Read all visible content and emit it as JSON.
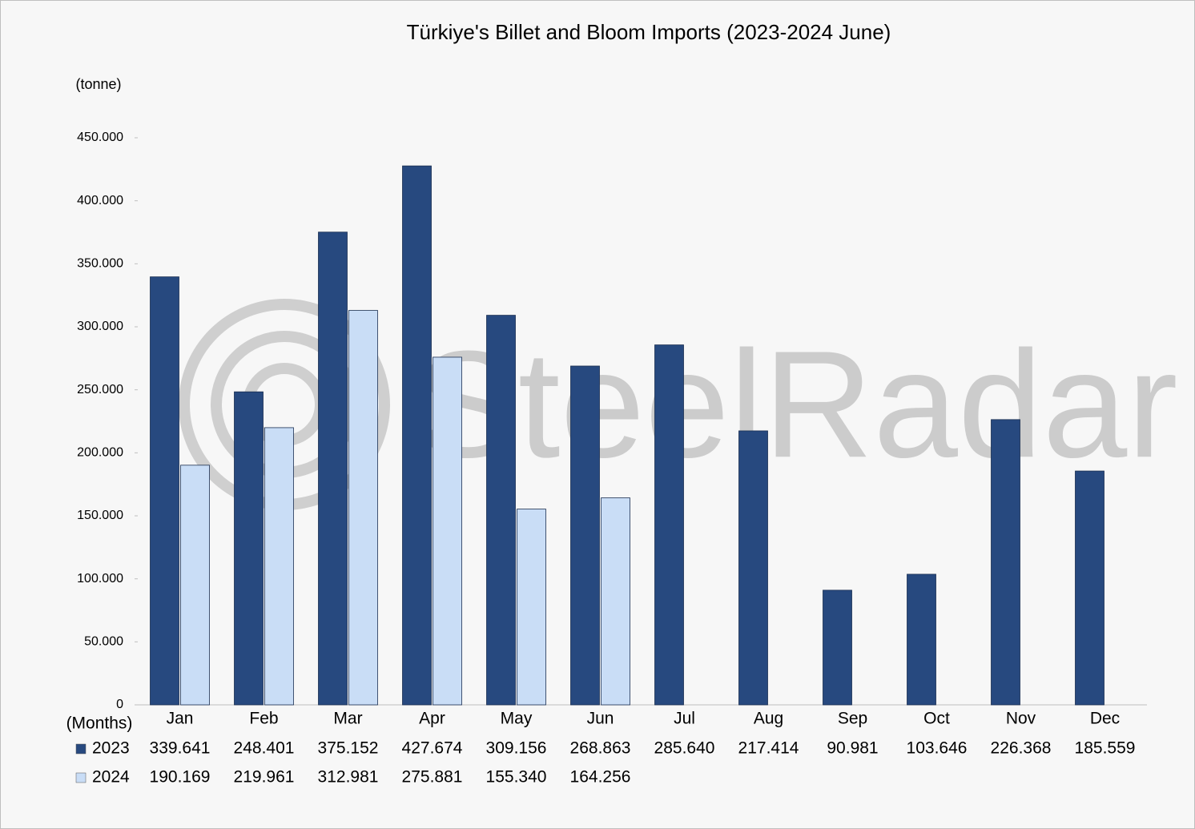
{
  "chart_data": {
    "type": "bar",
    "title": "Türkiye's Billet and Bloom Imports (2023-2024 June)",
    "y_label": "(tonne)",
    "x_label": "(Months)",
    "watermark": "SteelRadar",
    "categories": [
      "Jan",
      "Feb",
      "Mar",
      "Apr",
      "May",
      "Jun",
      "Jul",
      "Aug",
      "Sep",
      "Oct",
      "Nov",
      "Dec"
    ],
    "series": [
      {
        "name": "2023",
        "color": "#27497f",
        "values": [
          339641,
          248401,
          375152,
          427674,
          309156,
          268863,
          285640,
          217414,
          90981,
          103646,
          226368,
          185559
        ],
        "value_labels": [
          "339.641",
          "248.401",
          "375.152",
          "427.674",
          "309.156",
          "268.863",
          "285.640",
          "217.414",
          "90.981",
          "103.646",
          "226.368",
          "185.559"
        ]
      },
      {
        "name": "2024",
        "color": "#c9ddf6",
        "values": [
          190169,
          219961,
          312981,
          275881,
          155340,
          164256,
          null,
          null,
          null,
          null,
          null,
          null
        ],
        "value_labels": [
          "190.169",
          "219.961",
          "312.981",
          "275.881",
          "155.340",
          "164.256",
          null,
          null,
          null,
          null,
          null,
          null
        ]
      }
    ],
    "ylim": [
      0,
      450000
    ],
    "yticks": [
      0,
      {
        "value": 50000,
        "label": "50.000"
      },
      {
        "value": 100000,
        "label": "100.000"
      },
      {
        "value": 150000,
        "label": "150.000"
      },
      {
        "value": 200000,
        "label": "200.000"
      },
      {
        "value": 250000,
        "label": "250.000"
      },
      {
        "value": 300000,
        "label": "300.000"
      },
      {
        "value": 350000,
        "label": "350.000"
      },
      {
        "value": 400000,
        "label": "400.000"
      },
      {
        "value": 450000,
        "label": "450.000"
      }
    ],
    "grid": false
  }
}
